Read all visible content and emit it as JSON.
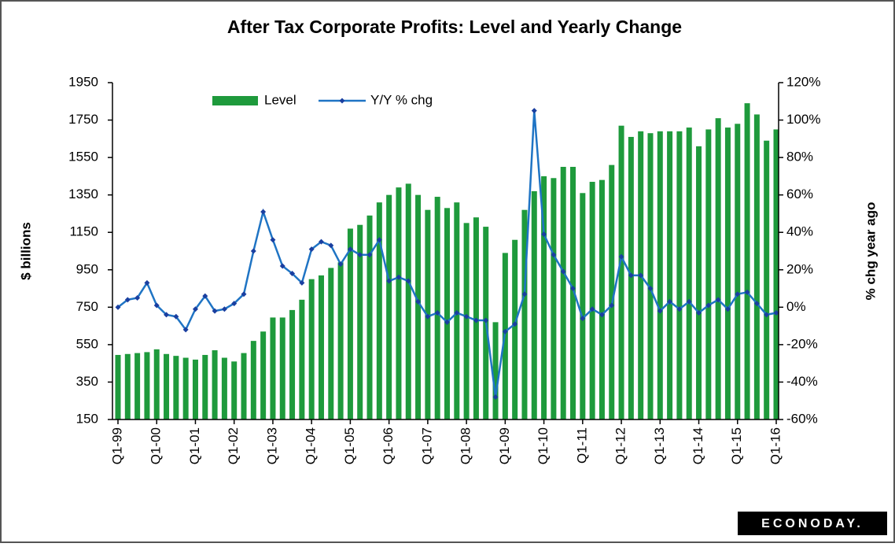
{
  "chart_data": {
    "type": "bar-line",
    "title": "After Tax Corporate Profits:  Level and Yearly Change",
    "ylabel": "$ billions",
    "y2label": "% chg year ago",
    "categories": [
      "Q1-99",
      null,
      null,
      null,
      "Q1-00",
      null,
      null,
      null,
      "Q1-01",
      null,
      null,
      null,
      "Q1-02",
      null,
      null,
      null,
      "Q1-03",
      null,
      null,
      null,
      "Q1-04",
      null,
      null,
      null,
      "Q1-05",
      null,
      null,
      null,
      "Q1-06",
      null,
      null,
      null,
      "Q1-07",
      null,
      null,
      null,
      "Q1-08",
      null,
      null,
      null,
      "Q1-09",
      null,
      null,
      null,
      "Q1-10",
      null,
      null,
      null,
      "Q1-11",
      null,
      null,
      null,
      "Q1-12",
      null,
      null,
      null,
      "Q1-13",
      null,
      null,
      null,
      "Q1-14",
      null,
      null,
      null,
      "Q1-15",
      null,
      null,
      null,
      "Q1-16"
    ],
    "series": [
      {
        "name": "Level",
        "type": "bar",
        "color": "#1e9a3c",
        "values": [
          495,
          500,
          505,
          510,
          525,
          500,
          490,
          480,
          470,
          495,
          520,
          480,
          460,
          505,
          570,
          620,
          695,
          695,
          735,
          790,
          900,
          920,
          960,
          990,
          1170,
          1190,
          1240,
          1310,
          1350,
          1390,
          1410,
          1350,
          1270,
          1340,
          1280,
          1310,
          1200,
          1230,
          1180,
          670,
          1040,
          1110,
          1270,
          1370,
          1450,
          1440,
          1500,
          1500,
          1360,
          1420,
          1430,
          1510,
          1720,
          1660,
          1690,
          1680,
          1690,
          1690,
          1690,
          1710,
          1610,
          1700,
          1760,
          1710,
          1730,
          1840,
          1780,
          1640,
          1700
        ]
      },
      {
        "name": "Y/Y % chg",
        "type": "line",
        "axis": "y2",
        "color": "#1f74c4",
        "values": [
          0,
          4,
          5,
          13,
          1,
          -4,
          -5,
          -12,
          -1,
          6,
          -2,
          -1,
          2,
          7,
          30,
          51,
          36,
          22,
          18,
          13,
          31,
          35,
          33,
          23,
          31,
          28,
          28,
          36,
          14,
          16,
          14,
          3,
          -5,
          -3,
          -8,
          -3,
          -5,
          -7,
          -7,
          -48,
          -13,
          -9,
          7,
          105,
          39,
          28,
          19,
          10,
          -6,
          -1,
          -4,
          1,
          27,
          17,
          17,
          10,
          -2,
          3,
          -1,
          3,
          -3,
          1,
          4,
          -1,
          7,
          8,
          2,
          -4,
          -3
        ]
      }
    ],
    "ylim": [
      150,
      1950
    ],
    "yticks": [
      150,
      350,
      550,
      750,
      950,
      1150,
      1350,
      1550,
      1750,
      1950
    ],
    "y2lim": [
      -60,
      120
    ],
    "y2ticks": [
      {
        "value": -60,
        "label": "-60%"
      },
      {
        "value": -40,
        "label": "-40%"
      },
      {
        "value": -20,
        "label": "-20%"
      },
      {
        "value": 0,
        "label": "0%"
      },
      {
        "value": 20,
        "label": "20%"
      },
      {
        "value": 40,
        "label": "40%"
      },
      {
        "value": 60,
        "label": "60%"
      },
      {
        "value": 80,
        "label": "80%"
      },
      {
        "value": 100,
        "label": "100%"
      },
      {
        "value": 120,
        "label": "120%"
      }
    ],
    "grid": false
  },
  "logo": "ECONODAY."
}
